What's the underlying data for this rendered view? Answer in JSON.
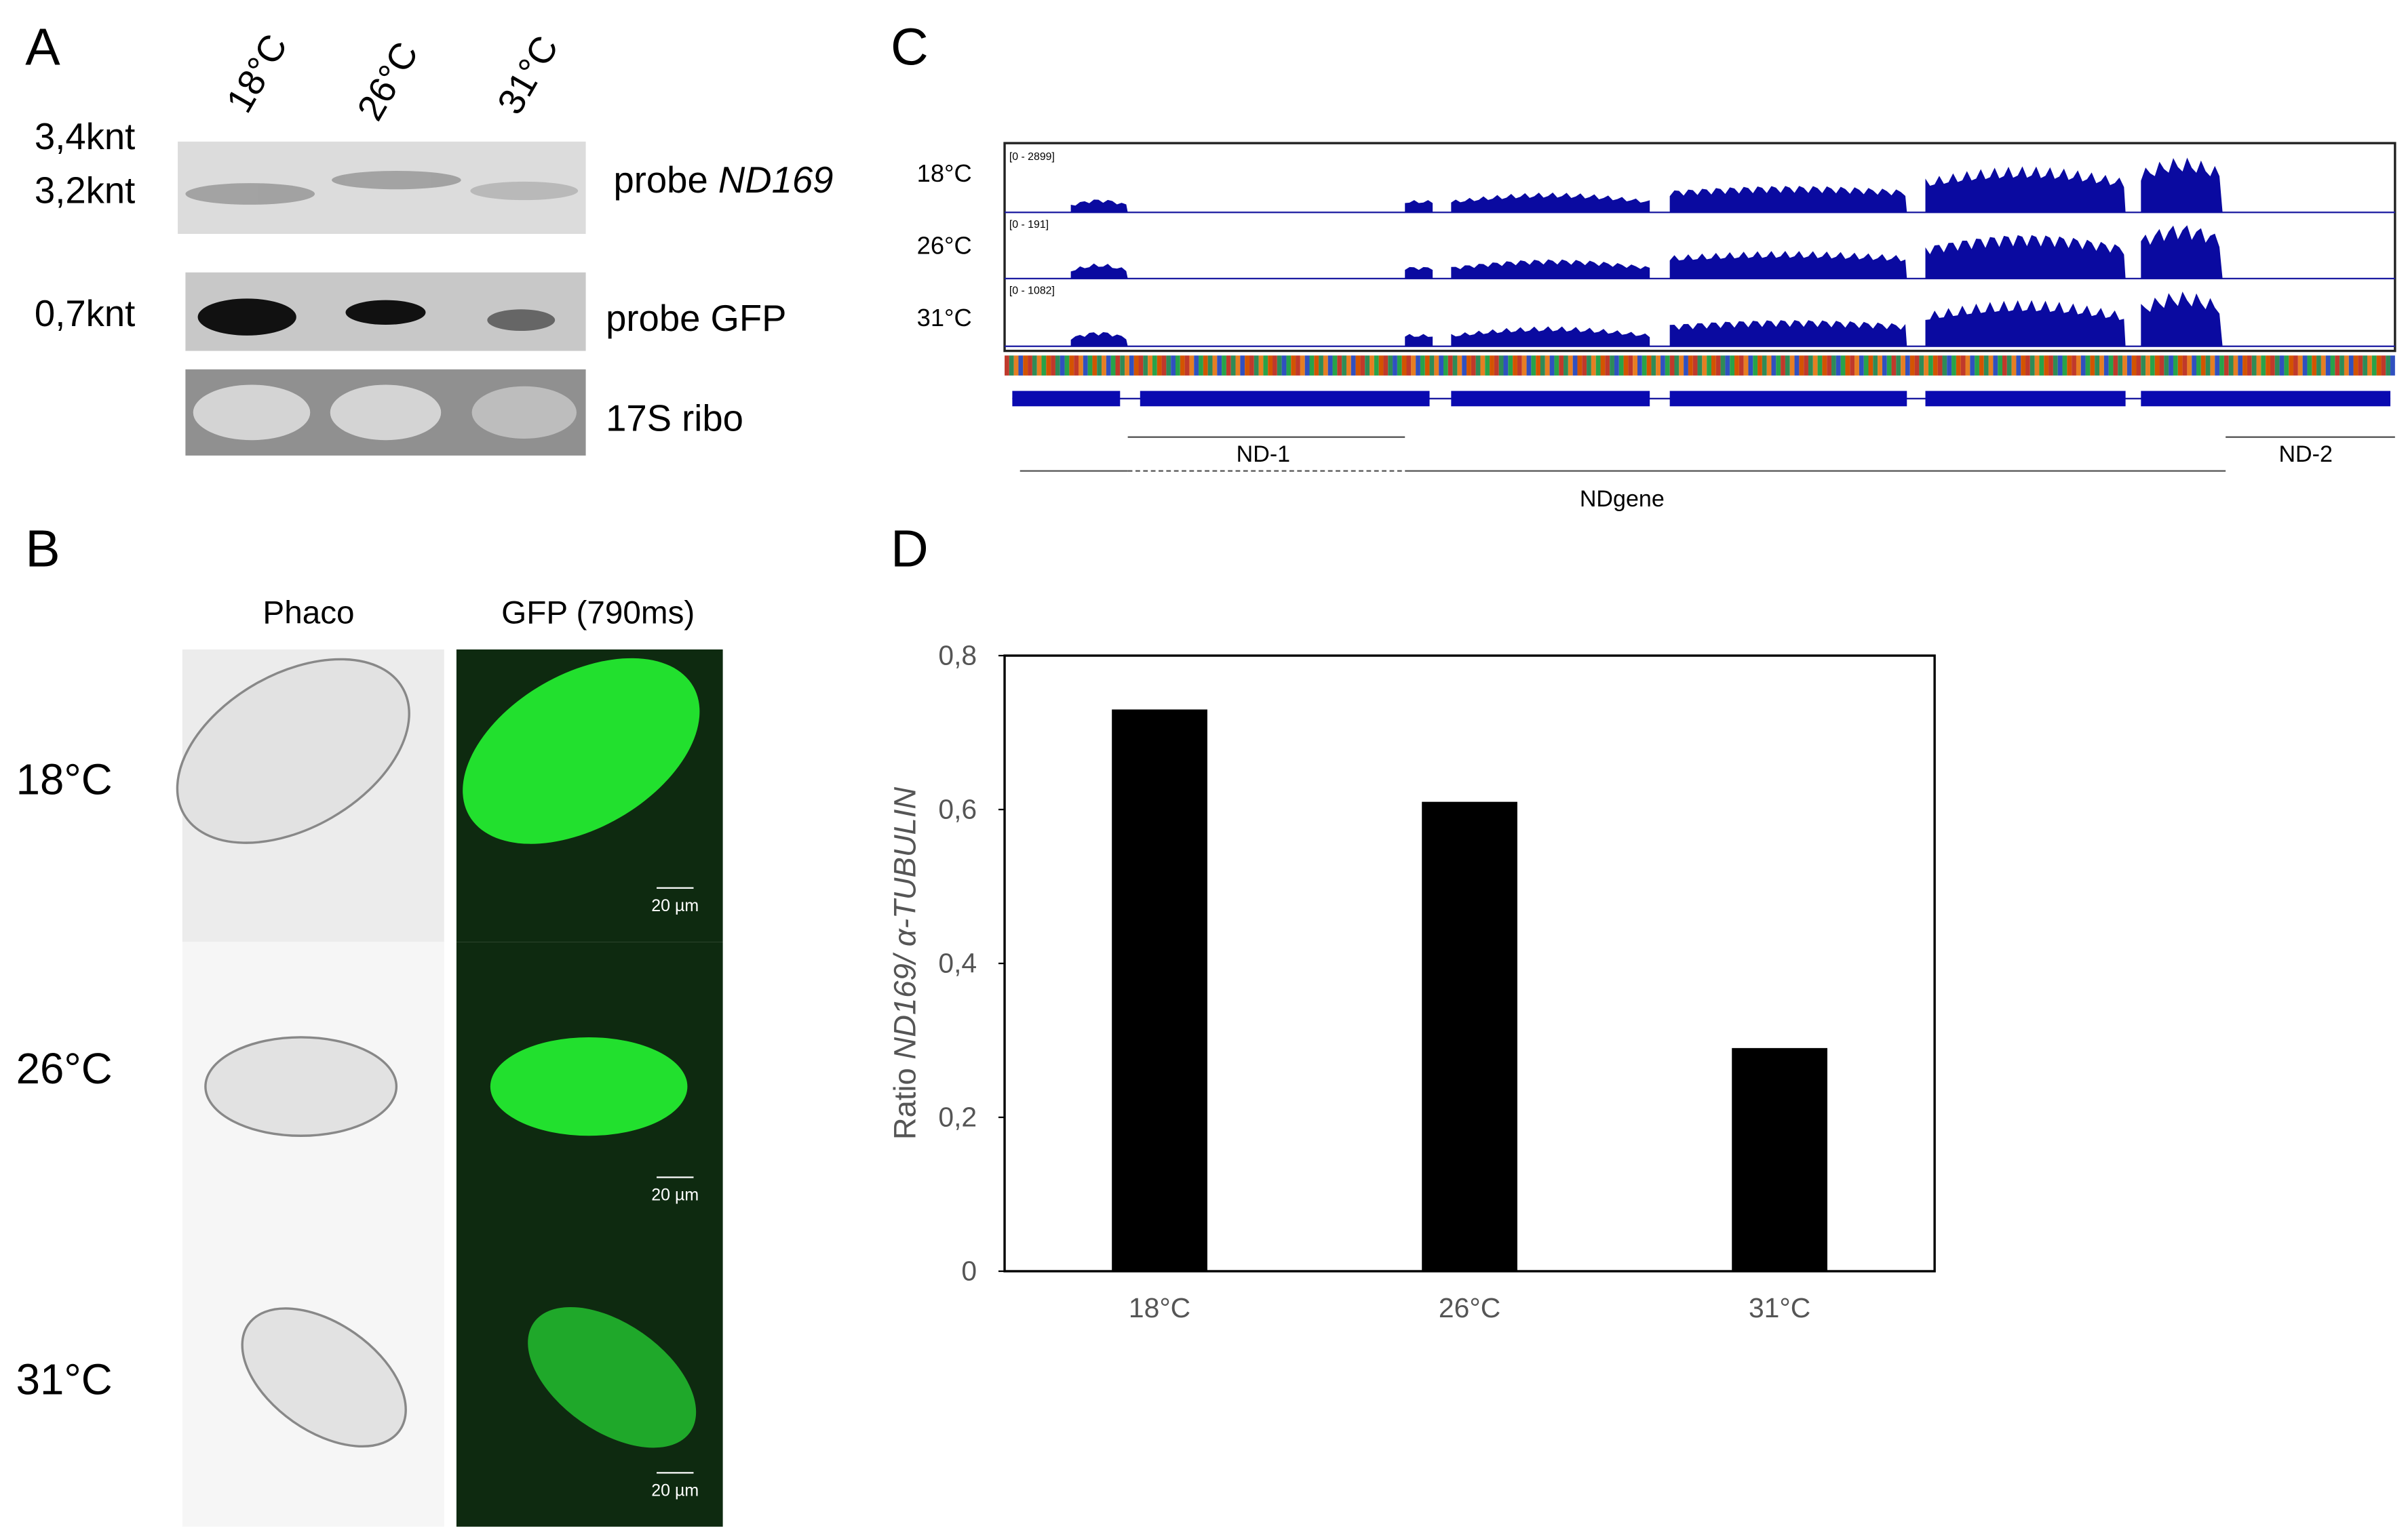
{
  "panel_a": {
    "label": "A",
    "lanes": [
      "18°C",
      "26°C",
      "31°C"
    ],
    "sizes": [
      "3,4knt",
      "3,2knt",
      "0,7knt"
    ],
    "probe_nd169": [
      "probe ",
      "ND169"
    ],
    "probe_gfp": "probe GFP",
    "ribo": "17S ribo"
  },
  "panel_b": {
    "label": "B",
    "columns": [
      "Phaco",
      "GFP (790ms)"
    ],
    "rows": [
      "18°C",
      "26°C",
      "31°C"
    ],
    "scale_bar": "20 µm"
  },
  "panel_c": {
    "label": "C",
    "tracks": [
      {
        "name": "18°C",
        "range": "[0 - 2899]"
      },
      {
        "name": "26°C",
        "range": "[0 - 191]"
      },
      {
        "name": "31°C",
        "range": "[0 - 1082]"
      }
    ],
    "features": [
      "ND-1",
      "ND-2",
      "NDgene"
    ]
  },
  "chart_data": {
    "type": "bar",
    "label": "D",
    "ylabel": [
      "Ratio ",
      "ND169/ α-TUBULIN"
    ],
    "categories": [
      "18°C",
      "26°C",
      "31°C"
    ],
    "values": [
      0.73,
      0.61,
      0.29
    ],
    "color": "#000000",
    "ylim": [
      0,
      0.8
    ],
    "yticks": [
      0,
      {
        "value": 0.2,
        "label": "0,2"
      },
      {
        "value": 0.4,
        "label": "0,4"
      },
      {
        "value": 0.6,
        "label": "0,6"
      },
      {
        "value": 0.8,
        "label": "0,8"
      }
    ]
  }
}
